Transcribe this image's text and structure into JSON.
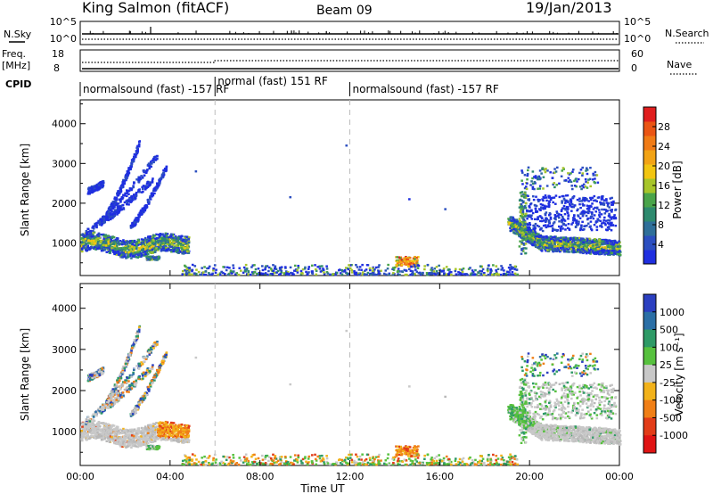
{
  "header": {
    "title": "King Salmon (fitACF)",
    "beam": "Beam 09",
    "date": "19/Jan/2013"
  },
  "strips": {
    "nsky": {
      "label": "N.Sky",
      "ticks": [
        "10^5",
        "10^0"
      ],
      "right_label": "N.Search",
      "right_ticks": [
        "10^5",
        "10^0"
      ]
    },
    "freq": {
      "label_lines": [
        "Freq.",
        "[MHz]"
      ],
      "ticks": [
        "18",
        "8"
      ],
      "right_label": "Nave",
      "right_ticks": [
        "60",
        "0"
      ]
    },
    "cpid": {
      "label": "CPID",
      "segments": [
        {
          "label": "normalsound (fast) -157 RF",
          "start_h": 0,
          "end_h": 6
        },
        {
          "label": "normal (fast) 151 RF",
          "start_h": 6,
          "end_h": 12
        },
        {
          "label": "normalsound (fast) -157 RF",
          "start_h": 12,
          "end_h": 24
        }
      ]
    }
  },
  "chart_data": [
    {
      "type": "heatmap",
      "name": "power",
      "ylabel": "Slant Range [km]",
      "ylim": [
        180,
        4600
      ],
      "yticks": [
        1000,
        2000,
        3000,
        4000
      ],
      "xlim": [
        0,
        24
      ],
      "colorbar": {
        "label": "Power [dB]",
        "range": [
          0,
          32
        ],
        "ticks": [
          "4",
          "8",
          "12",
          "16",
          "20",
          "24",
          "28"
        ],
        "colors": [
          "#1f2fe0",
          "#2c4fc0",
          "#2f6f99",
          "#2e8a6e",
          "#4aa44a",
          "#a7c52a",
          "#f2c511",
          "#f2a315",
          "#f07b16",
          "#ea5514",
          "#e01e1e"
        ]
      },
      "features": [
        {
          "x": [
            0.0,
            4.8
          ],
          "range_km": [
            700,
            1400
          ],
          "level": "medium",
          "desc": "dense band"
        },
        {
          "x": [
            0.3,
            3.5
          ],
          "range_km": [
            1500,
            3500
          ],
          "level": "low",
          "desc": "rising arcs"
        },
        {
          "x": [
            14.0,
            15.0
          ],
          "range_km": [
            400,
            650
          ],
          "level": "high",
          "desc": "patch"
        },
        {
          "x": [
            19.0,
            24.0
          ],
          "range_km": [
            700,
            2900
          ],
          "level": "low-medium",
          "desc": "band and arcs"
        }
      ]
    },
    {
      "type": "heatmap",
      "name": "velocity",
      "ylabel": "Slant Range [km]",
      "ylim": [
        180,
        4600
      ],
      "yticks": [
        1000,
        2000,
        3000,
        4000
      ],
      "xlim": [
        0,
        24
      ],
      "xlabel": "Time UT",
      "xticks": [
        "00:00",
        "04:00",
        "08:00",
        "12:00",
        "16:00",
        "20:00",
        "00:00"
      ],
      "colorbar": {
        "label": "Velocity [m s⁻¹]",
        "ticks": [
          "1000",
          "500",
          "100",
          "25",
          "-25",
          "-100",
          "-500",
          "-1000"
        ],
        "colors": [
          "#2b3fc0",
          "#2b6fa6",
          "#2e9a66",
          "#57c13e",
          "#c8c8c8",
          "#f2b21a",
          "#f07f16",
          "#e23c18",
          "#e01414"
        ]
      },
      "features": [
        {
          "x": [
            0.0,
            3.5
          ],
          "range_km": [
            700,
            1400
          ],
          "velocity": "~0 (ground scatter)"
        },
        {
          "x": [
            3.5,
            4.8
          ],
          "range_km": [
            800,
            1400
          ],
          "velocity": "-100 to -500"
        },
        {
          "x": [
            0.3,
            3.5
          ],
          "range_km": [
            1500,
            3500
          ],
          "velocity": "mixed"
        },
        {
          "x": [
            14.0,
            15.0
          ],
          "range_km": [
            400,
            650
          ],
          "velocity": "-500"
        },
        {
          "x": [
            19.0,
            24.0
          ],
          "range_km": [
            700,
            2900
          ],
          "velocity": "0 to +500"
        }
      ]
    }
  ]
}
